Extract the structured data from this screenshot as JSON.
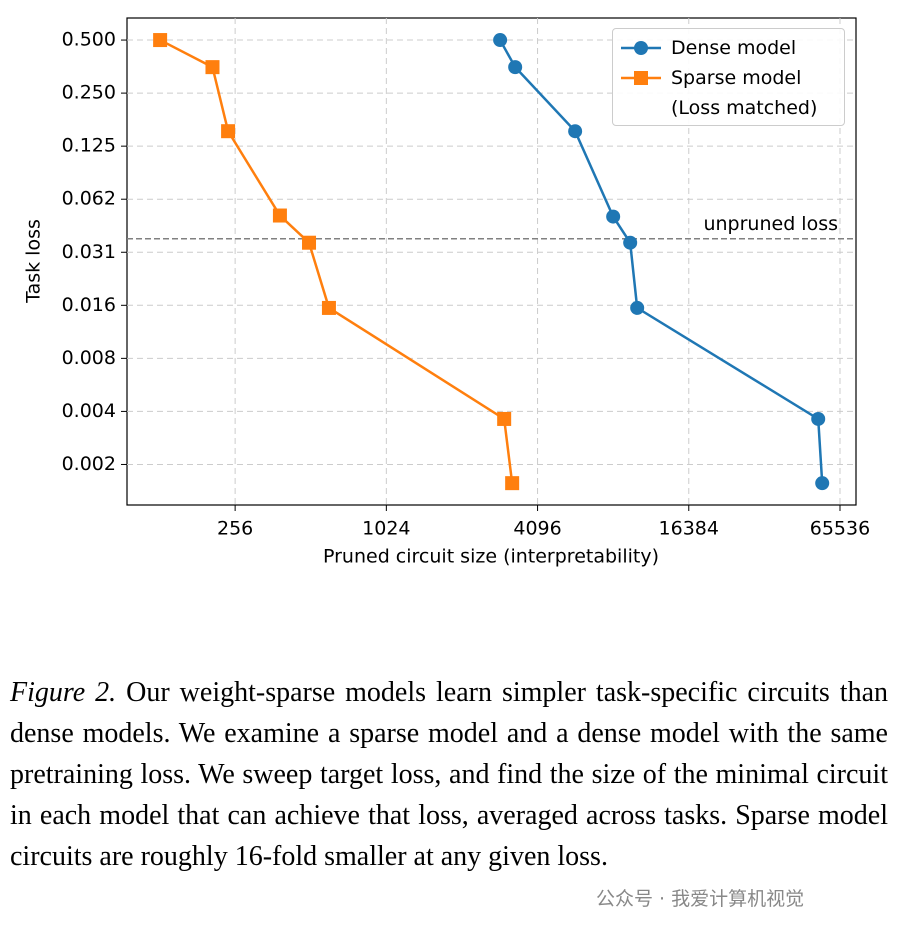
{
  "chart_data": {
    "type": "line",
    "xlabel": "Pruned circuit size (interpretability)",
    "ylabel": "Task loss",
    "xscale": "log2",
    "yscale": "log2",
    "xlim": [
      95,
      75900
    ],
    "ylim": [
      0.00115,
      0.667
    ],
    "xticks": [
      256,
      1024,
      4096,
      16384,
      65536
    ],
    "yticks": [
      {
        "value": 0.5,
        "label": "0.500"
      },
      {
        "value": 0.25,
        "label": "0.250"
      },
      {
        "value": 0.125,
        "label": "0.125"
      },
      {
        "value": 0.0625,
        "label": "0.062"
      },
      {
        "value": 0.03125,
        "label": "0.031"
      },
      {
        "value": 0.015625,
        "label": "0.016"
      },
      {
        "value": 0.0078125,
        "label": "0.008"
      },
      {
        "value": 0.00390625,
        "label": "0.004"
      },
      {
        "value": 0.001953125,
        "label": "0.002"
      }
    ],
    "grid": true,
    "legend": "upper right",
    "series": [
      {
        "name": "Dense model",
        "color": "#1f77b4",
        "marker": "circle",
        "x": [
          2906,
          3336,
          5781,
          8192,
          9575,
          10210,
          53680,
          55680
        ],
        "values": [
          0.5,
          0.351,
          0.152,
          0.0498,
          0.0354,
          0.0151,
          0.00354,
          0.00153
        ]
      },
      {
        "name": "Sparse model\n(Loss matched)",
        "color": "#ff7f0e",
        "marker": "square",
        "x": [
          128.7,
          208,
          240,
          386,
          504,
          605,
          3016,
          3245
        ],
        "values": [
          0.5,
          0.351,
          0.152,
          0.0505,
          0.0354,
          0.0151,
          0.00354,
          0.00153
        ]
      }
    ],
    "reference_line": {
      "value": 0.0373,
      "label": "unpruned loss",
      "color": "#808080"
    }
  },
  "caption": {
    "label": "Figure 2.",
    "text": "Our weight-sparse models learn simpler task-specific circuits than dense models.  We examine a sparse model and a dense model with the same pretraining loss. We sweep target loss, and find the size of the minimal circuit in each model that can achieve that loss, averaged across tasks. Sparse model circuits are roughly 16-fold smaller at any given loss."
  },
  "watermark": "公众号 · 我爱计算机视觉"
}
